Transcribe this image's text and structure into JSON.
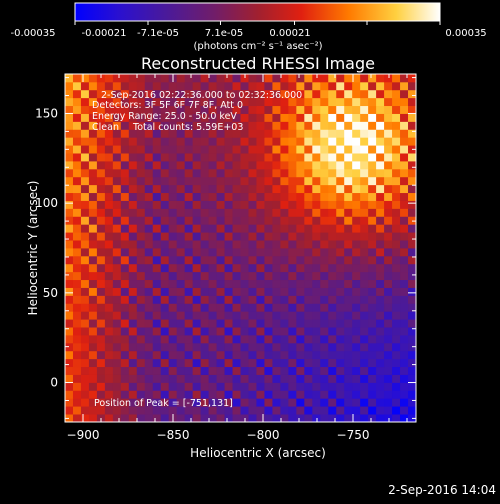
{
  "chart_data": {
    "type": "heatmap",
    "title": "Reconstructed RHESSI Image",
    "colorbar": {
      "ticks": [
        "-0.00035",
        "-0.00021",
        "-7.1e-05",
        "7.1e-05",
        "0.00021",
        "0.00035"
      ],
      "range": [
        -0.00035,
        0.00035
      ],
      "unit_label": "(photons cm⁻² s⁻¹ asec⁻²)",
      "colormap": [
        "#0000ff",
        "#2a10d0",
        "#4a1a9a",
        "#701d6a",
        "#a02030",
        "#e02010",
        "#ff7a00",
        "#ffd040",
        "#ffffff"
      ]
    },
    "xlabel": "Heliocentric X (arcsec)",
    "ylabel": "Heliocentric Y (arcsec)",
    "xlim": [
      -910,
      -715
    ],
    "ylim": [
      -22,
      172
    ],
    "xticks": [
      -900,
      -850,
      -800,
      -750
    ],
    "yticks": [
      0,
      50,
      100,
      150
    ],
    "grid": false,
    "annotations": {
      "time_range": "2-Sep-2016 02:22:36.000 to 02:32:36.000",
      "detectors": "Detectors: 3F 5F 6F 7F 8F, Att 0",
      "energy": "Energy Range: 25.0 - 50.0 keV",
      "method": "Clean",
      "counts": "Total counts: 5.59E+03",
      "peak": "Position of Peak = [-751,131]"
    },
    "peak": {
      "x": -751,
      "y": 131
    },
    "footer_timestamp": "2-Sep-2016 14:04"
  }
}
